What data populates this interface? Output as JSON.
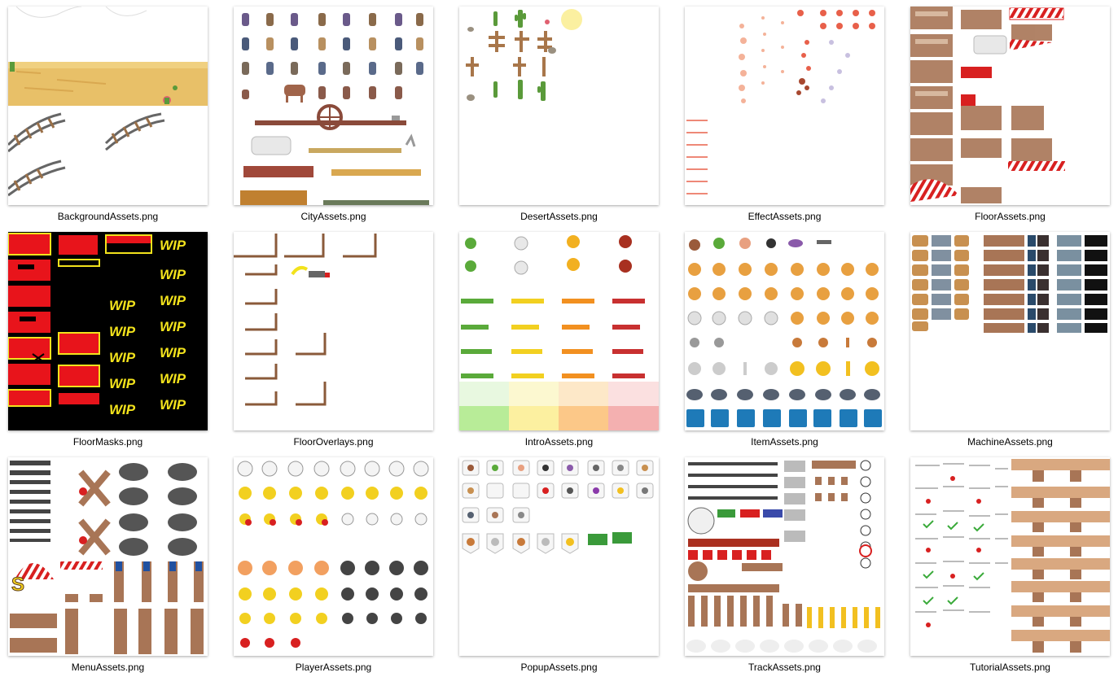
{
  "window": {
    "view": "large-icons"
  },
  "files": [
    {
      "name": "BackgroundAssets.png",
      "thumb": "background"
    },
    {
      "name": "CityAssets.png",
      "thumb": "city"
    },
    {
      "name": "DesertAssets.png",
      "thumb": "desert"
    },
    {
      "name": "EffectAssets.png",
      "thumb": "effect"
    },
    {
      "name": "FloorAssets.png",
      "thumb": "floor"
    },
    {
      "name": "FloorMasks.png",
      "thumb": "floormasks"
    },
    {
      "name": "FloorOverlays.png",
      "thumb": "flooroverlays"
    },
    {
      "name": "IntroAssets.png",
      "thumb": "intro"
    },
    {
      "name": "ItemAssets.png",
      "thumb": "item"
    },
    {
      "name": "MachineAssets.png",
      "thumb": "machine"
    },
    {
      "name": "MenuAssets.png",
      "thumb": "menu"
    },
    {
      "name": "PlayerAssets.png",
      "thumb": "player"
    },
    {
      "name": "PopupAssets.png",
      "thumb": "popup"
    },
    {
      "name": "TrackAssets.png",
      "thumb": "track"
    },
    {
      "name": "TutorialAssets.png",
      "thumb": "tutorial"
    }
  ],
  "floormasks_text": {
    "wip": "WIP"
  },
  "colors": {
    "sand": "#e8c068",
    "wood": "#a87556",
    "mask_red": "#e8141b",
    "mask_yellow": "#f2e21c",
    "label_text": "#000000"
  }
}
